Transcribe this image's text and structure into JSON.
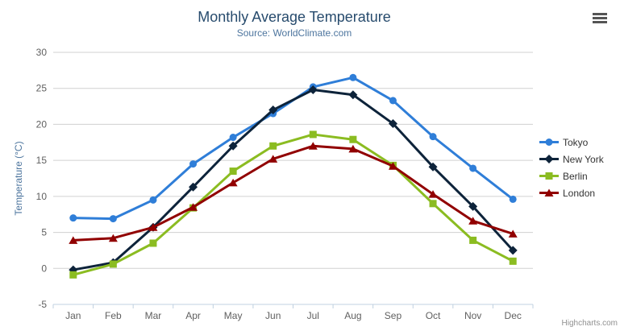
{
  "header": {
    "menu_icon": "hamburger-menu-icon"
  },
  "credits": {
    "label": "Highcharts.com"
  },
  "colors": {
    "title": "#274b6d",
    "subtitle": "#4d759e",
    "axis_label": "#606060",
    "axis_line": "#c0d0e0",
    "grid": "#d0d0d0",
    "legend_text": "#333333",
    "credits": "#909090",
    "menu_icon": "#555555"
  },
  "chart_data": {
    "type": "line",
    "title": "Monthly Average Temperature",
    "subtitle": "Source: WorldClimate.com",
    "categories": [
      "Jan",
      "Feb",
      "Mar",
      "Apr",
      "May",
      "Jun",
      "Jul",
      "Aug",
      "Sep",
      "Oct",
      "Nov",
      "Dec"
    ],
    "xlabel": "",
    "ylabel": "Temperature (°C)",
    "ylim": [
      -5,
      30
    ],
    "yticks": [
      -5,
      0,
      5,
      10,
      15,
      20,
      25,
      30
    ],
    "grid": true,
    "legend_position": "right",
    "series": [
      {
        "name": "Tokyo",
        "color": "#2f7ed8",
        "marker": "circle",
        "values": [
          7.0,
          6.9,
          9.5,
          14.5,
          18.2,
          21.5,
          25.2,
          26.5,
          23.3,
          18.3,
          13.9,
          9.6
        ]
      },
      {
        "name": "New York",
        "color": "#0d233a",
        "marker": "diamond",
        "values": [
          -0.2,
          0.8,
          5.7,
          11.3,
          17.0,
          22.0,
          24.8,
          24.1,
          20.1,
          14.1,
          8.6,
          2.5
        ]
      },
      {
        "name": "Berlin",
        "color": "#8bbc21",
        "marker": "square",
        "values": [
          -0.9,
          0.6,
          3.5,
          8.4,
          13.5,
          17.0,
          18.6,
          17.9,
          14.3,
          9.0,
          3.9,
          1.0
        ]
      },
      {
        "name": "London",
        "color": "#910000",
        "marker": "triangle",
        "values": [
          3.9,
          4.2,
          5.7,
          8.5,
          11.9,
          15.2,
          17.0,
          16.6,
          14.2,
          10.3,
          6.6,
          4.8
        ]
      }
    ]
  }
}
